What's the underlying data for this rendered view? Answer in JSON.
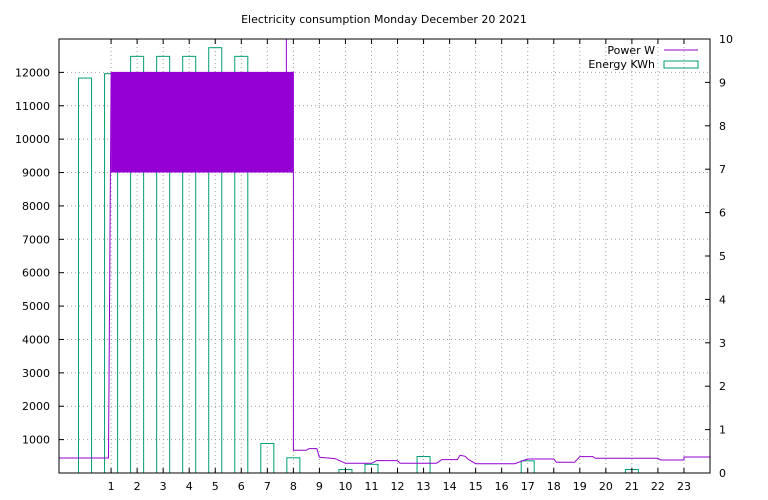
{
  "chart_data": {
    "type": "line",
    "title": "Electricity consumption Monday December 20 2021",
    "xlabel": "",
    "ylabel": "",
    "y2label": "",
    "x_ticks": [
      1,
      2,
      3,
      4,
      5,
      6,
      7,
      8,
      9,
      10,
      11,
      12,
      13,
      14,
      15,
      16,
      17,
      18,
      19,
      20,
      21,
      22,
      23
    ],
    "xlim": [
      -1,
      24
    ],
    "ylim": [
      0,
      13000
    ],
    "y_ticks": [
      1000,
      2000,
      3000,
      4000,
      5000,
      6000,
      7000,
      8000,
      9000,
      10000,
      11000,
      12000
    ],
    "y2lim": [
      0,
      10
    ],
    "y2_ticks": [
      0,
      1,
      2,
      3,
      4,
      5,
      6,
      7,
      8,
      9,
      10
    ],
    "grid": true,
    "legend_position": "top-right",
    "colors": {
      "power": "#9400d3",
      "energy": "#009e73"
    },
    "series": [
      {
        "name": "Power W",
        "axis": "left",
        "style": "step",
        "points": [
          [
            -1,
            450
          ],
          [
            0,
            450
          ],
          [
            0.9,
            450
          ],
          [
            1,
            12000
          ],
          [
            8,
            12000
          ],
          [
            8,
            680
          ],
          [
            8.5,
            680
          ],
          [
            8.6,
            730
          ],
          [
            8.9,
            730
          ],
          [
            9,
            470
          ],
          [
            9.6,
            430
          ],
          [
            10,
            290
          ],
          [
            11,
            290
          ],
          [
            11.2,
            370
          ],
          [
            12,
            370
          ],
          [
            12.1,
            290
          ],
          [
            13.5,
            290
          ],
          [
            13.7,
            400
          ],
          [
            14.3,
            400
          ],
          [
            14.4,
            530
          ],
          [
            14.6,
            500
          ],
          [
            14.7,
            420
          ],
          [
            15,
            280
          ],
          [
            16.5,
            280
          ],
          [
            17,
            420
          ],
          [
            18,
            420
          ],
          [
            18.1,
            320
          ],
          [
            18.8,
            320
          ],
          [
            19,
            490
          ],
          [
            19.5,
            490
          ],
          [
            19.6,
            440
          ],
          [
            22,
            440
          ],
          [
            22.1,
            390
          ],
          [
            23,
            390
          ],
          [
            23,
            480
          ],
          [
            24,
            480
          ]
        ],
        "fill_band": {
          "x": [
            1,
            8
          ],
          "y": [
            9000,
            12000
          ]
        }
      },
      {
        "name": "Energy KWh",
        "axis": "right",
        "style": "impulse-bars",
        "x": [
          0,
          1,
          2,
          3,
          4,
          5,
          6,
          7,
          8,
          9,
          10,
          11,
          12,
          13,
          14,
          15,
          16,
          17,
          18,
          19,
          20,
          21,
          22,
          23
        ],
        "values": [
          9.1,
          9.2,
          9.6,
          9.6,
          9.6,
          9.8,
          9.6,
          0.68,
          0.35,
          0,
          0.08,
          0.2,
          0,
          0.38,
          0,
          0,
          0,
          0.28,
          0,
          0,
          0,
          0.08,
          0,
          0
        ]
      }
    ]
  }
}
